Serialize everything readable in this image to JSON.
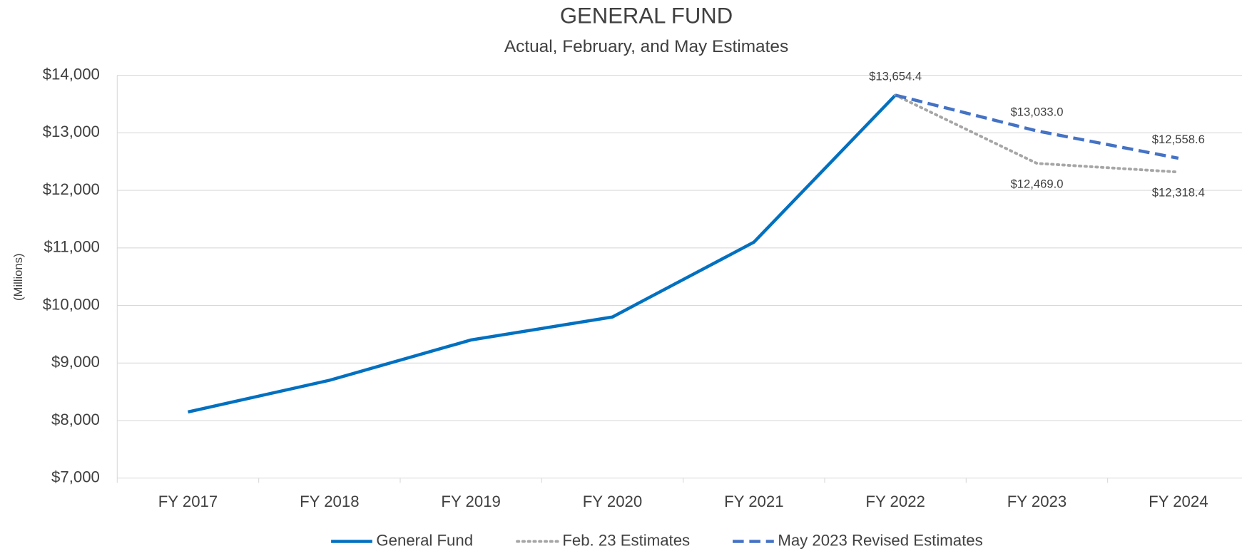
{
  "chart_data": {
    "type": "line",
    "title": "GENERAL FUND",
    "subtitle": "Actual, February, and May Estimates",
    "y_label": "(Millions)",
    "categories": [
      "FY 2017",
      "FY 2018",
      "FY 2019",
      "FY 2020",
      "FY 2021",
      "FY 2022",
      "FY 2023",
      "FY 2024"
    ],
    "ylim": [
      7000,
      14000
    ],
    "yticks": [
      {
        "value": 7000,
        "label": "$7,000"
      },
      {
        "value": 8000,
        "label": "$8,000"
      },
      {
        "value": 9000,
        "label": "$9,000"
      },
      {
        "value": 10000,
        "label": "$10,000"
      },
      {
        "value": 11000,
        "label": "$11,000"
      },
      {
        "value": 12000,
        "label": "$12,000"
      },
      {
        "value": 13000,
        "label": "$13,000"
      },
      {
        "value": 14000,
        "label": "$14,000"
      }
    ],
    "grid": true,
    "legend": "bottom",
    "series": [
      {
        "name": "General Fund",
        "color": "#0070c0",
        "dash": "solid",
        "values": [
          8150,
          8700,
          9400,
          9800,
          11100,
          13654.4,
          null,
          null
        ]
      },
      {
        "name": "Feb. 23 Estimates",
        "color": "#a6a6a6",
        "dash": "dotted",
        "values": [
          null,
          null,
          null,
          null,
          null,
          13654.4,
          12469.0,
          12318.4
        ],
        "value_labels": [
          null,
          null,
          null,
          null,
          null,
          null,
          "$12,469.0",
          "$12,318.4"
        ]
      },
      {
        "name": "May 2023 Revised Estimates",
        "color": "#4472c4",
        "dash": "dashed",
        "values": [
          null,
          null,
          null,
          null,
          null,
          13654.4,
          13033.0,
          12558.6
        ],
        "value_labels": [
          null,
          null,
          null,
          null,
          null,
          "$13,654.4",
          "$13,033.0",
          "$12,558.6"
        ]
      }
    ]
  }
}
